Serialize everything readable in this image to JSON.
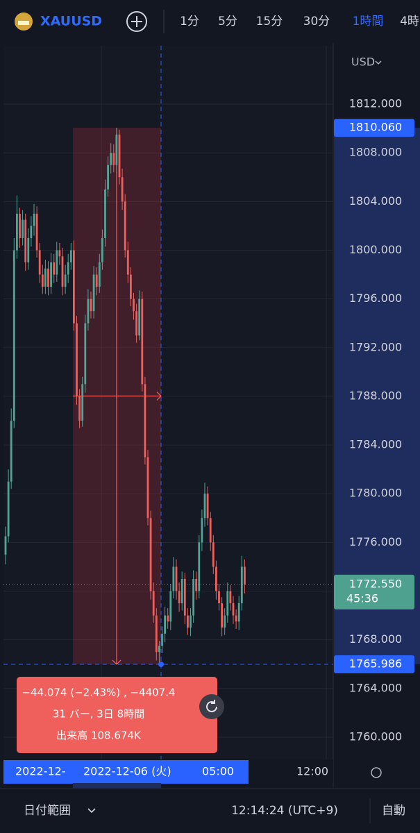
{
  "header": {
    "symbol": "XAUUSD",
    "intervals": [
      "1分",
      "5分",
      "15分",
      "30分",
      "1時間",
      "4時"
    ],
    "active_interval": 4
  },
  "chart_data": {
    "type": "candlestick",
    "currency": "USD",
    "open": [
      1775,
      1776.5,
      1781,
      1786,
      1800,
      1803,
      1801,
      1802.5,
      1799,
      1801,
      1802,
      1803,
      1800,
      1798,
      1797,
      1798.5,
      1797,
      1799,
      1798,
      1800,
      1799.5,
      1797,
      1798,
      1799,
      1800,
      1794,
      1788,
      1786,
      1789,
      1794,
      1796,
      1795,
      1798,
      1797,
      1799,
      1801,
      1805,
      1807,
      1808,
      1807,
      1809.5,
      1806,
      1804,
      1800,
      1798,
      1796,
      1795,
      1793,
      1796,
      1789,
      1783,
      1778,
      1772,
      1770,
      1767,
      1767.5,
      1768.5,
      1770,
      1769.5,
      1772,
      1774,
      1772,
      1771,
      1773,
      1770,
      1769,
      1770,
      1773,
      1772,
      1776,
      1778,
      1780,
      1778,
      1776,
      1774,
      1772,
      1771,
      1769,
      1770,
      1772,
      1771,
      1770,
      1769.5,
      1771,
      1774
    ],
    "high": [
      1777.3,
      1782,
      1787,
      1801,
      1804.5,
      1803.5,
      1803.3,
      1803,
      1801.8,
      1802.8,
      1803.8,
      1803.6,
      1800.6,
      1798.8,
      1799.2,
      1799.1,
      1799.8,
      1799.7,
      1800.7,
      1800.6,
      1800.2,
      1798.8,
      1799.7,
      1800.6,
      1800.8,
      1794.6,
      1788.6,
      1789.6,
      1794.7,
      1796.8,
      1796.6,
      1798.7,
      1798.6,
      1799.7,
      1801.7,
      1805.8,
      1807.7,
      1808.8,
      1808.7,
      1810.06,
      1809.9,
      1806.7,
      1804.6,
      1800.7,
      1798.6,
      1796.5,
      1795.6,
      1796.7,
      1796.6,
      1789.6,
      1783.6,
      1778.6,
      1772.7,
      1770.6,
      1767.9,
      1769.1,
      1770.7,
      1770.6,
      1772.6,
      1774.8,
      1774.6,
      1772.7,
      1773.6,
      1773.5,
      1770.6,
      1770.6,
      1773.7,
      1773.6,
      1776.6,
      1778.7,
      1780.9,
      1780.6,
      1778.5,
      1776.6,
      1774.5,
      1772.6,
      1771.5,
      1770.6,
      1772.7,
      1772.5,
      1771.6,
      1770.5,
      1771.6,
      1774.9,
      1774.6
    ],
    "low": [
      1774.2,
      1776,
      1780.4,
      1785.4,
      1799.3,
      1800.2,
      1800.4,
      1798.3,
      1798.4,
      1800.3,
      1801.2,
      1799.4,
      1797.3,
      1796.4,
      1796.4,
      1796.3,
      1796.4,
      1797.3,
      1797.4,
      1798.8,
      1796.3,
      1796.4,
      1797.3,
      1798.4,
      1793.4,
      1787.3,
      1785.4,
      1785.5,
      1788.3,
      1793.4,
      1794.4,
      1794.4,
      1796.3,
      1796.5,
      1798.4,
      1800.3,
      1804.4,
      1806.3,
      1806.4,
      1806.3,
      1805.4,
      1803.3,
      1799.4,
      1797.3,
      1795.4,
      1794.3,
      1792.4,
      1792.6,
      1788.4,
      1782.4,
      1777.4,
      1771.3,
      1769.4,
      1766.3,
      1765.986,
      1766.9,
      1767.8,
      1768.9,
      1768.8,
      1771.4,
      1771.3,
      1770.3,
      1770.4,
      1769.3,
      1768.4,
      1768.3,
      1769.4,
      1771.3,
      1771.4,
      1775.3,
      1777.3,
      1777.4,
      1775.3,
      1773.4,
      1771.3,
      1770.4,
      1768.3,
      1768.4,
      1769.4,
      1770.4,
      1769.3,
      1768.9,
      1768.8,
      1770.4,
      1771.8
    ],
    "close": [
      1776.5,
      1781,
      1786,
      1800,
      1803,
      1801,
      1802.5,
      1799,
      1801,
      1802,
      1803,
      1800,
      1798,
      1797,
      1798.5,
      1797,
      1799,
      1798,
      1800,
      1799.5,
      1797,
      1798,
      1799,
      1800,
      1794,
      1788,
      1786,
      1789,
      1794,
      1796,
      1795,
      1798,
      1797,
      1799,
      1801,
      1805,
      1807,
      1808,
      1807,
      1809.5,
      1806,
      1804,
      1800,
      1798,
      1796,
      1795,
      1793,
      1796,
      1789,
      1783,
      1778,
      1772,
      1770,
      1767,
      1767.5,
      1768.5,
      1770,
      1769.5,
      1772,
      1774,
      1772,
      1771,
      1773,
      1770,
      1769,
      1770,
      1773,
      1772,
      1776,
      1778,
      1780,
      1778,
      1776,
      1774,
      1772,
      1771,
      1769,
      1770,
      1772,
      1771,
      1770,
      1769.5,
      1771,
      1774,
      1772.55
    ],
    "ylim": [
      1758.4,
      1816.85
    ],
    "yticks": [
      {
        "value": 1812,
        "label": "1812.000"
      },
      {
        "value": 1808,
        "label": "1808.000"
      },
      {
        "value": 1804,
        "label": "1804.000"
      },
      {
        "value": 1800,
        "label": "1800.000"
      },
      {
        "value": 1796,
        "label": "1796.000"
      },
      {
        "value": 1792,
        "label": "1792.000"
      },
      {
        "value": 1788,
        "label": "1788.000"
      },
      {
        "value": 1784,
        "label": "1784.000"
      },
      {
        "value": 1780,
        "label": "1780.000"
      },
      {
        "value": 1776,
        "label": "1776.000"
      },
      {
        "value": 1772,
        "label": "1772.000"
      },
      {
        "value": 1768,
        "label": "1768.000"
      },
      {
        "value": 1764,
        "label": "1764.000"
      },
      {
        "value": 1760,
        "label": "1760.000"
      }
    ],
    "colors": {
      "up": "#52a595",
      "down": "#ef5f5c"
    },
    "last_price": {
      "value": 1772.55,
      "label": "1772.550"
    },
    "countdown": "45:36",
    "crosshair_price": {
      "value": 1765.986,
      "label": "1765.986"
    },
    "range_high": {
      "value": 1810.06,
      "label": "1810.060"
    },
    "measure": [
      "−44.074 (−2.43%) , −4407.4",
      "31 バー, 3日 8時間",
      "出来高 108.674K"
    ],
    "time_labels": [
      "2022-12-",
      "2022-12-06 (火)",
      "05:00",
      "12:00"
    ]
  },
  "footer": {
    "date_range": "日付範囲",
    "clock": "12:14:24 (UTC+9)",
    "scale": "自動"
  }
}
